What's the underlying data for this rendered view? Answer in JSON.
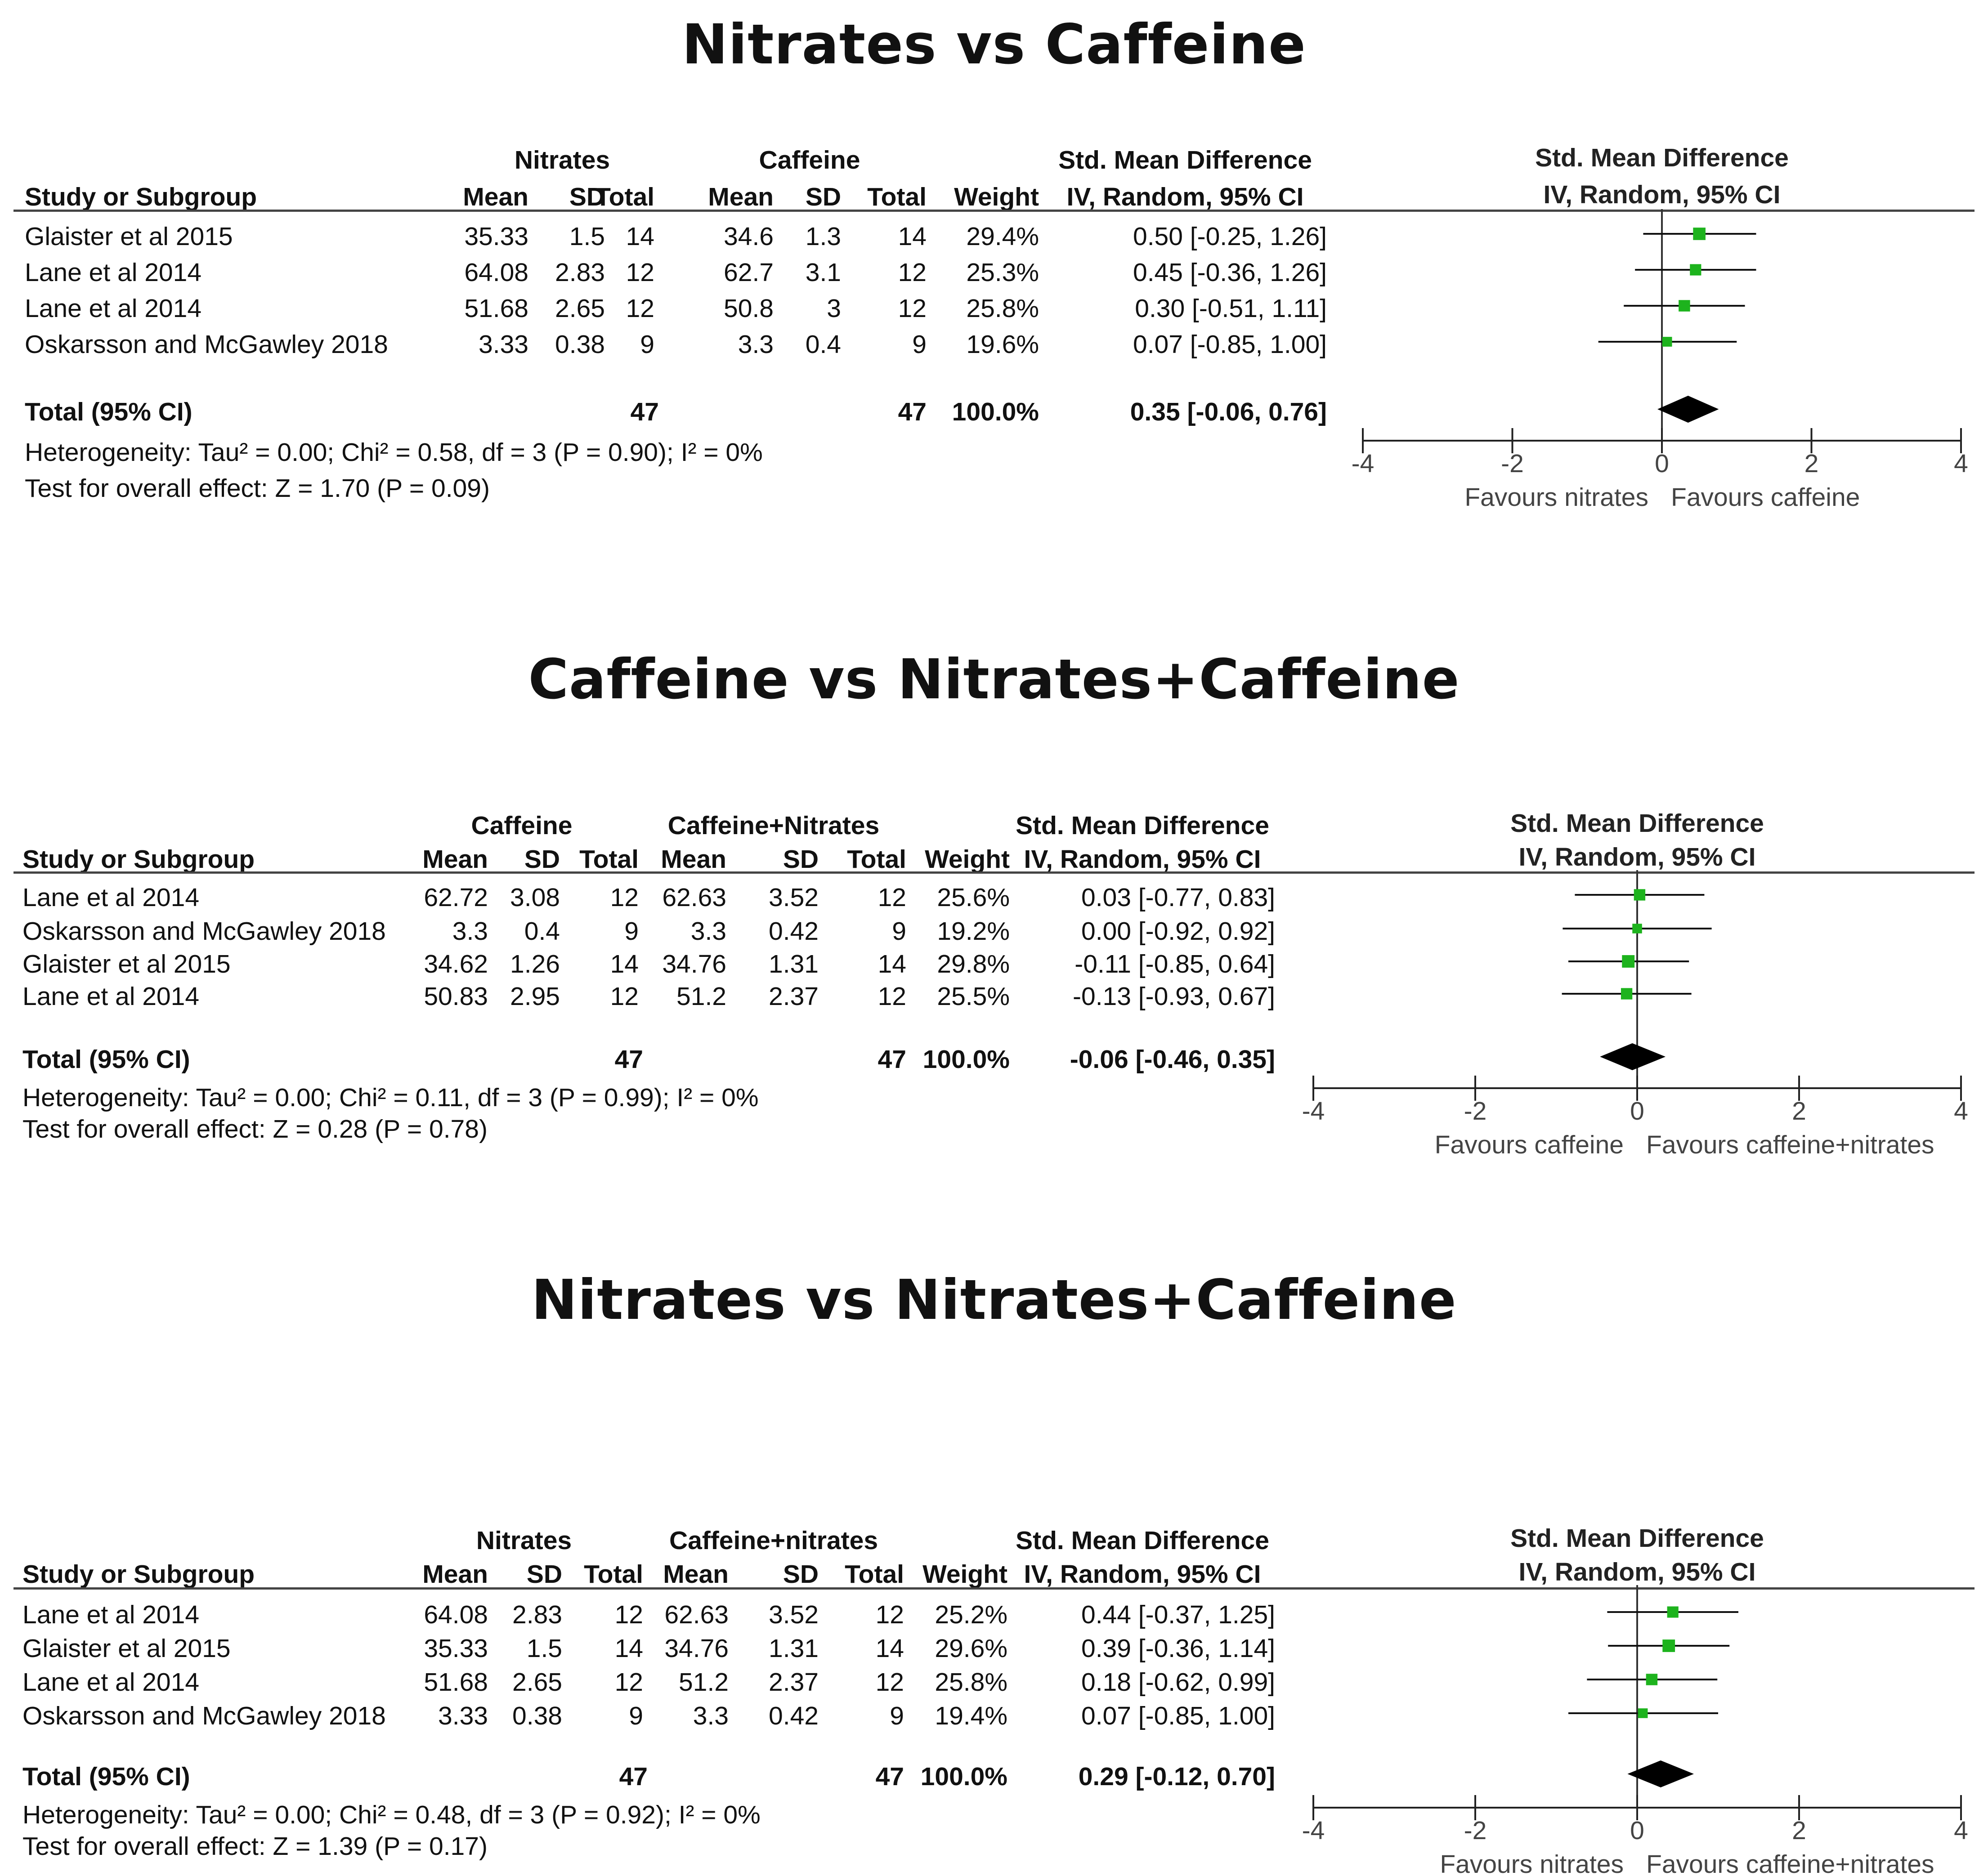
{
  "chart_data": [
    {
      "type": "forest",
      "title": "Nitrates vs Caffeine",
      "group1": "Nitrates",
      "group2": "Caffeine",
      "headers": {
        "study": "Study or Subgroup",
        "mean": "Mean",
        "sd": "SD",
        "total": "Total",
        "weight": "Weight",
        "effect_title": "Std. Mean Difference",
        "effect_method": "IV, Random, 95% CI",
        "plot_title": "Std. Mean Difference",
        "plot_method": "IV, Random, 95% CI"
      },
      "studies": [
        {
          "name": "Glaister et al 2015",
          "mean1": "35.33",
          "sd1": "1.5",
          "n1": "14",
          "mean2": "34.6",
          "sd2": "1.3",
          "n2": "14",
          "weight": "29.4%",
          "ci_text": "0.50 [-0.25, 1.26]",
          "est": 0.5,
          "lo": -0.25,
          "hi": 1.26,
          "w": 29.4
        },
        {
          "name": "Lane et al 2014",
          "mean1": "64.08",
          "sd1": "2.83",
          "n1": "12",
          "mean2": "62.7",
          "sd2": "3.1",
          "n2": "12",
          "weight": "25.3%",
          "ci_text": "0.45 [-0.36, 1.26]",
          "est": 0.45,
          "lo": -0.36,
          "hi": 1.26,
          "w": 25.3
        },
        {
          "name": "Lane et al 2014",
          "mean1": "51.68",
          "sd1": "2.65",
          "n1": "12",
          "mean2": "50.8",
          "sd2": "3",
          "n2": "12",
          "weight": "25.8%",
          "ci_text": "0.30 [-0.51, 1.11]",
          "est": 0.3,
          "lo": -0.51,
          "hi": 1.11,
          "w": 25.8
        },
        {
          "name": "Oskarsson and McGawley 2018",
          "mean1": "3.33",
          "sd1": "0.38",
          "n1": "9",
          "mean2": "3.3",
          "sd2": "0.4",
          "n2": "9",
          "weight": "19.6%",
          "ci_text": "0.07 [-0.85, 1.00]",
          "est": 0.07,
          "lo": -0.85,
          "hi": 1.0,
          "w": 19.6
        }
      ],
      "total": {
        "label": "Total (95% CI)",
        "n1": "47",
        "n2": "47",
        "weight": "100.0%",
        "ci_text": "0.35 [-0.06, 0.76]",
        "est": 0.35,
        "lo": -0.06,
        "hi": 0.76
      },
      "heterogeneity": "Heterogeneity: Tau² = 0.00; Chi² = 0.58, df = 3 (P = 0.90); I² = 0%",
      "overall": "Test for overall effect: Z = 1.70 (P = 0.09)",
      "xlim": [
        -4,
        4
      ],
      "ticks": [
        "-4",
        "-2",
        "0",
        "2",
        "4"
      ],
      "favours_left": "Favours nitrates",
      "favours_right": "Favours caffeine",
      "marker_color": "#1db31d"
    },
    {
      "type": "forest",
      "title": "Caffeine vs Nitrates+Caffeine",
      "group1": "Caffeine",
      "group2": "Caffeine+Nitrates",
      "headers": {
        "study": "Study or Subgroup",
        "mean": "Mean",
        "sd": "SD",
        "total": "Total",
        "weight": "Weight",
        "effect_title": "Std. Mean Difference",
        "effect_method": "IV, Random, 95% CI",
        "plot_title": "Std. Mean Difference",
        "plot_method": "IV, Random, 95% CI"
      },
      "studies": [
        {
          "name": "Lane et al 2014",
          "mean1": "62.72",
          "sd1": "3.08",
          "n1": "12",
          "mean2": "62.63",
          "sd2": "3.52",
          "n2": "12",
          "weight": "25.6%",
          "ci_text": "0.03 [-0.77, 0.83]",
          "est": 0.03,
          "lo": -0.77,
          "hi": 0.83,
          "w": 25.6
        },
        {
          "name": "Oskarsson and McGawley 2018",
          "mean1": "3.3",
          "sd1": "0.4",
          "n1": "9",
          "mean2": "3.3",
          "sd2": "0.42",
          "n2": "9",
          "weight": "19.2%",
          "ci_text": "0.00 [-0.92, 0.92]",
          "est": 0.0,
          "lo": -0.92,
          "hi": 0.92,
          "w": 19.2
        },
        {
          "name": "Glaister et al 2015",
          "mean1": "34.62",
          "sd1": "1.26",
          "n1": "14",
          "mean2": "34.76",
          "sd2": "1.31",
          "n2": "14",
          "weight": "29.8%",
          "ci_text": "-0.11 [-0.85, 0.64]",
          "est": -0.11,
          "lo": -0.85,
          "hi": 0.64,
          "w": 29.8
        },
        {
          "name": "Lane et al 2014",
          "mean1": "50.83",
          "sd1": "2.95",
          "n1": "12",
          "mean2": "51.2",
          "sd2": "2.37",
          "n2": "12",
          "weight": "25.5%",
          "ci_text": "-0.13 [-0.93, 0.67]",
          "est": -0.13,
          "lo": -0.93,
          "hi": 0.67,
          "w": 25.5
        }
      ],
      "total": {
        "label": "Total (95% CI)",
        "n1": "47",
        "n2": "47",
        "weight": "100.0%",
        "ci_text": "-0.06 [-0.46, 0.35]",
        "est": -0.06,
        "lo": -0.46,
        "hi": 0.35
      },
      "heterogeneity": "Heterogeneity: Tau² = 0.00; Chi² = 0.11, df = 3 (P = 0.99); I² = 0%",
      "overall": "Test for overall effect: Z = 0.28 (P = 0.78)",
      "xlim": [
        -4,
        4
      ],
      "ticks": [
        "-4",
        "-2",
        "0",
        "2",
        "4"
      ],
      "favours_left": "Favours caffeine",
      "favours_right": "Favours caffeine+nitrates",
      "marker_color": "#1db31d"
    },
    {
      "type": "forest",
      "title": "Nitrates vs Nitrates+Caffeine",
      "group1": "Nitrates",
      "group2": "Caffeine+nitrates",
      "headers": {
        "study": "Study or Subgroup",
        "mean": "Mean",
        "sd": "SD",
        "total": "Total",
        "weight": "Weight",
        "effect_title": "Std. Mean Difference",
        "effect_method": "IV, Random, 95% CI",
        "plot_title": "Std. Mean Difference",
        "plot_method": "IV, Random, 95% CI"
      },
      "studies": [
        {
          "name": "Lane et al 2014",
          "mean1": "64.08",
          "sd1": "2.83",
          "n1": "12",
          "mean2": "62.63",
          "sd2": "3.52",
          "n2": "12",
          "weight": "25.2%",
          "ci_text": "0.44 [-0.37, 1.25]",
          "est": 0.44,
          "lo": -0.37,
          "hi": 1.25,
          "w": 25.2
        },
        {
          "name": "Glaister et al 2015",
          "mean1": "35.33",
          "sd1": "1.5",
          "n1": "14",
          "mean2": "34.76",
          "sd2": "1.31",
          "n2": "14",
          "weight": "29.6%",
          "ci_text": "0.39 [-0.36, 1.14]",
          "est": 0.39,
          "lo": -0.36,
          "hi": 1.14,
          "w": 29.6
        },
        {
          "name": "Lane et al 2014",
          "mean1": "51.68",
          "sd1": "2.65",
          "n1": "12",
          "mean2": "51.2",
          "sd2": "2.37",
          "n2": "12",
          "weight": "25.8%",
          "ci_text": "0.18 [-0.62, 0.99]",
          "est": 0.18,
          "lo": -0.62,
          "hi": 0.99,
          "w": 25.8
        },
        {
          "name": "Oskarsson and McGawley 2018",
          "mean1": "3.33",
          "sd1": "0.38",
          "n1": "9",
          "mean2": "3.3",
          "sd2": "0.42",
          "n2": "9",
          "weight": "19.4%",
          "ci_text": "0.07 [-0.85, 1.00]",
          "est": 0.07,
          "lo": -0.85,
          "hi": 1.0,
          "w": 19.4
        }
      ],
      "total": {
        "label": "Total (95% CI)",
        "n1": "47",
        "n2": "47",
        "weight": "100.0%",
        "ci_text": "0.29 [-0.12, 0.70]",
        "est": 0.29,
        "lo": -0.12,
        "hi": 0.7
      },
      "heterogeneity": "Heterogeneity: Tau² = 0.00; Chi² = 0.48, df = 3 (P = 0.92); I² = 0%",
      "overall": "Test for overall effect: Z = 1.39 (P = 0.17)",
      "xlim": [
        -4,
        4
      ],
      "ticks": [
        "-4",
        "-2",
        "0",
        "2",
        "4"
      ],
      "favours_left": "Favours nitrates",
      "favours_right": "Favours caffeine+nitrates",
      "marker_color": "#1db31d"
    }
  ]
}
